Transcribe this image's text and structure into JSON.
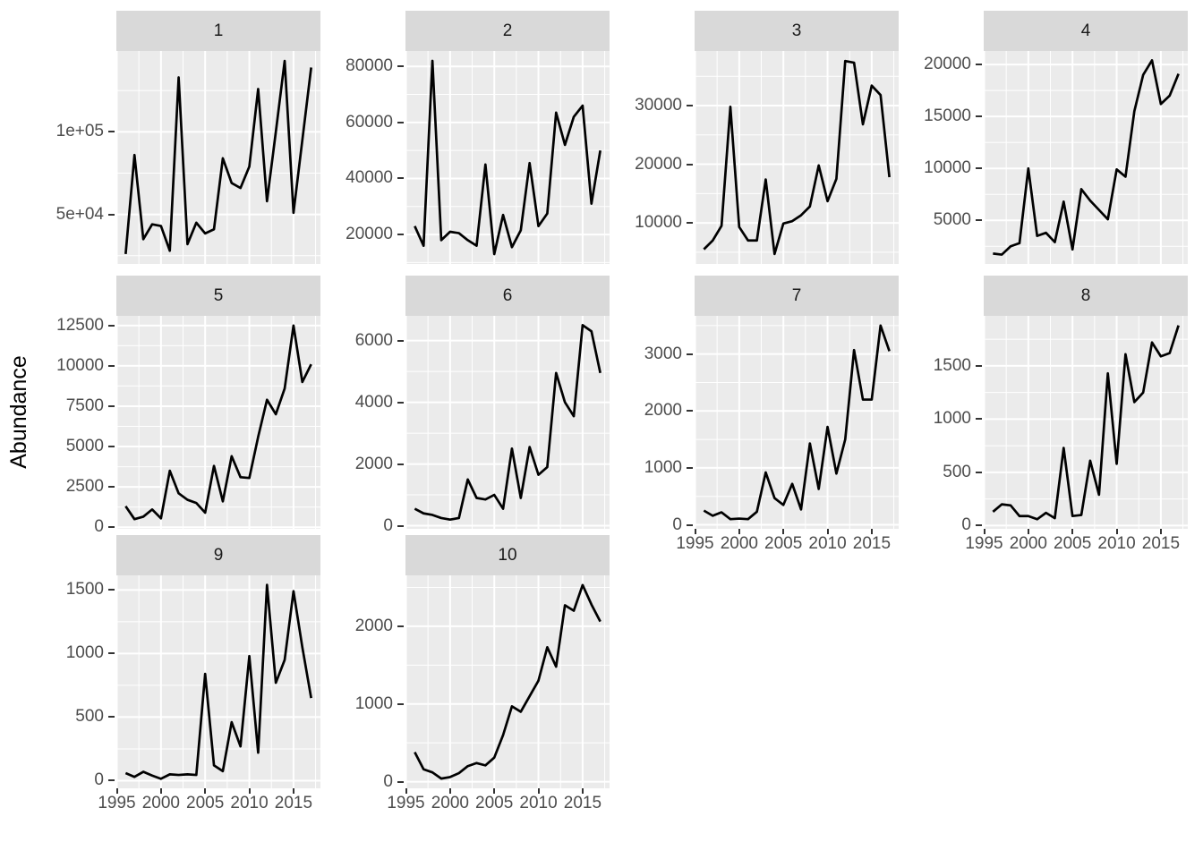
{
  "style": {
    "line_color": "#000000",
    "panel_bg": "#EBEBEB",
    "strip_bg": "#D9D9D9",
    "strip_text_color": "#1A1A1A",
    "grid_color": "#FFFFFF",
    "axis_text_color": "#4D4D4D",
    "tick_mark_color": "#333333",
    "background": "#FFFFFF"
  },
  "chart_data": {
    "type": "line",
    "title": "",
    "xlabel": "",
    "ylabel": "Abundance",
    "legend_position": "none",
    "grid": true,
    "facet_labels": [
      "1",
      "2",
      "3",
      "4",
      "5",
      "6",
      "7",
      "8",
      "9",
      "10"
    ],
    "x": [
      1996,
      1997,
      1998,
      1999,
      2000,
      2001,
      2002,
      2003,
      2004,
      2005,
      2006,
      2007,
      2008,
      2009,
      2010,
      2011,
      2012,
      2013,
      2014,
      2015,
      2016,
      2017
    ],
    "xlim": [
      1994.95,
      2018.05
    ],
    "x_ticks": {
      "values": [
        1995,
        2000,
        2005,
        2010,
        2015
      ],
      "labels": [
        "1995",
        "2000",
        "2005",
        "2010",
        "2015"
      ]
    },
    "facets": [
      {
        "label": "1",
        "x_axis": false,
        "ylim": [
          20000,
          149000
        ],
        "y_ticks": {
          "values": [
            50000,
            100000
          ],
          "labels": [
            "5e+04",
            "1e+05"
          ]
        },
        "values": [
          26000,
          86000,
          35000,
          44000,
          43000,
          28000,
          133000,
          32000,
          45000,
          38500,
          41000,
          84000,
          69000,
          66000,
          79000,
          126000,
          58000,
          100000,
          143000,
          51000,
          95000,
          139000
        ]
      },
      {
        "label": "2",
        "x_axis": false,
        "ylim": [
          9500,
          85500
        ],
        "y_ticks": {
          "values": [
            20000,
            40000,
            60000,
            80000
          ],
          "labels": [
            "20000",
            "40000",
            "60000",
            "80000"
          ]
        },
        "values": [
          23000,
          16000,
          82000,
          18000,
          21000,
          20500,
          18000,
          16000,
          45000,
          13000,
          27000,
          15500,
          21500,
          45500,
          23000,
          27500,
          63500,
          52000,
          62000,
          66000,
          31000,
          50000
        ]
      },
      {
        "label": "3",
        "x_axis": false,
        "ylim": [
          3000,
          39300
        ],
        "y_ticks": {
          "values": [
            10000,
            20000,
            30000
          ],
          "labels": [
            "10000",
            "20000",
            "30000"
          ]
        },
        "values": [
          5500,
          7000,
          9500,
          29800,
          9300,
          7000,
          7000,
          17400,
          4700,
          9900,
          10300,
          11300,
          12800,
          19800,
          13700,
          17500,
          37600,
          37300,
          26800,
          33400,
          31800,
          17800
        ]
      },
      {
        "label": "4",
        "x_axis": false,
        "ylim": [
          800,
          21300
        ],
        "y_ticks": {
          "values": [
            5000,
            10000,
            15000,
            20000
          ],
          "labels": [
            "5000",
            "10000",
            "15000",
            "20000"
          ]
        },
        "values": [
          1800,
          1700,
          2500,
          2800,
          10000,
          3500,
          3800,
          2900,
          6800,
          2200,
          8000,
          6900,
          6000,
          5100,
          9900,
          9200,
          15500,
          19000,
          20400,
          16200,
          17000,
          19100
        ]
      },
      {
        "label": "5",
        "x_axis": false,
        "ylim": [
          -100,
          13100
        ],
        "y_ticks": {
          "values": [
            0,
            2500,
            5000,
            7500,
            10000,
            12500
          ],
          "labels": [
            "0",
            "2500",
            "5000",
            "7500",
            "10000",
            "12500"
          ]
        },
        "values": [
          1300,
          500,
          650,
          1100,
          550,
          3500,
          2100,
          1700,
          1500,
          900,
          3800,
          1600,
          4400,
          3100,
          3050,
          5600,
          7900,
          7000,
          8600,
          12500,
          9000,
          10100
        ]
      },
      {
        "label": "6",
        "x_axis": false,
        "ylim": [
          -100,
          6800
        ],
        "y_ticks": {
          "values": [
            0,
            2000,
            4000,
            6000
          ],
          "labels": [
            "0",
            "2000",
            "4000",
            "6000"
          ]
        },
        "values": [
          550,
          400,
          350,
          250,
          200,
          250,
          1500,
          900,
          850,
          1000,
          550,
          2500,
          900,
          2550,
          1650,
          1900,
          4950,
          4000,
          3550,
          6500,
          6300,
          4950
        ]
      },
      {
        "label": "7",
        "x_axis": true,
        "ylim": [
          -70,
          3670
        ],
        "y_ticks": {
          "values": [
            0,
            1000,
            2000,
            3000
          ],
          "labels": [
            "0",
            "1000",
            "2000",
            "3000"
          ]
        },
        "values": [
          250,
          160,
          220,
          100,
          110,
          100,
          230,
          920,
          470,
          350,
          720,
          270,
          1430,
          630,
          1720,
          900,
          1500,
          3070,
          2200,
          2200,
          3500,
          3050
        ]
      },
      {
        "label": "8",
        "x_axis": true,
        "ylim": [
          -30,
          1970
        ],
        "y_ticks": {
          "values": [
            0,
            500,
            1000,
            1500
          ],
          "labels": [
            "0",
            "500",
            "1000",
            "1500"
          ]
        },
        "values": [
          130,
          200,
          190,
          90,
          90,
          60,
          120,
          70,
          730,
          90,
          100,
          610,
          290,
          1430,
          580,
          1610,
          1160,
          1250,
          1720,
          1590,
          1620,
          1880
        ]
      },
      {
        "label": "9",
        "x_axis": true,
        "ylim": [
          -60,
          1615
        ],
        "y_ticks": {
          "values": [
            0,
            500,
            1000,
            1500
          ],
          "labels": [
            "0",
            "500",
            "1000",
            "1500"
          ]
        },
        "values": [
          60,
          30,
          70,
          40,
          15,
          50,
          45,
          50,
          45,
          840,
          120,
          75,
          460,
          270,
          980,
          220,
          1540,
          770,
          950,
          1490,
          1050,
          650
        ]
      },
      {
        "label": "10",
        "x_axis": true,
        "ylim": [
          -85,
          2655
        ],
        "y_ticks": {
          "values": [
            0,
            1000,
            2000
          ],
          "labels": [
            "0",
            "1000",
            "2000"
          ]
        },
        "values": [
          380,
          160,
          120,
          40,
          60,
          110,
          200,
          240,
          210,
          310,
          600,
          970,
          900,
          1100,
          1300,
          1730,
          1480,
          2270,
          2200,
          2530,
          2280,
          2060
        ]
      }
    ]
  }
}
